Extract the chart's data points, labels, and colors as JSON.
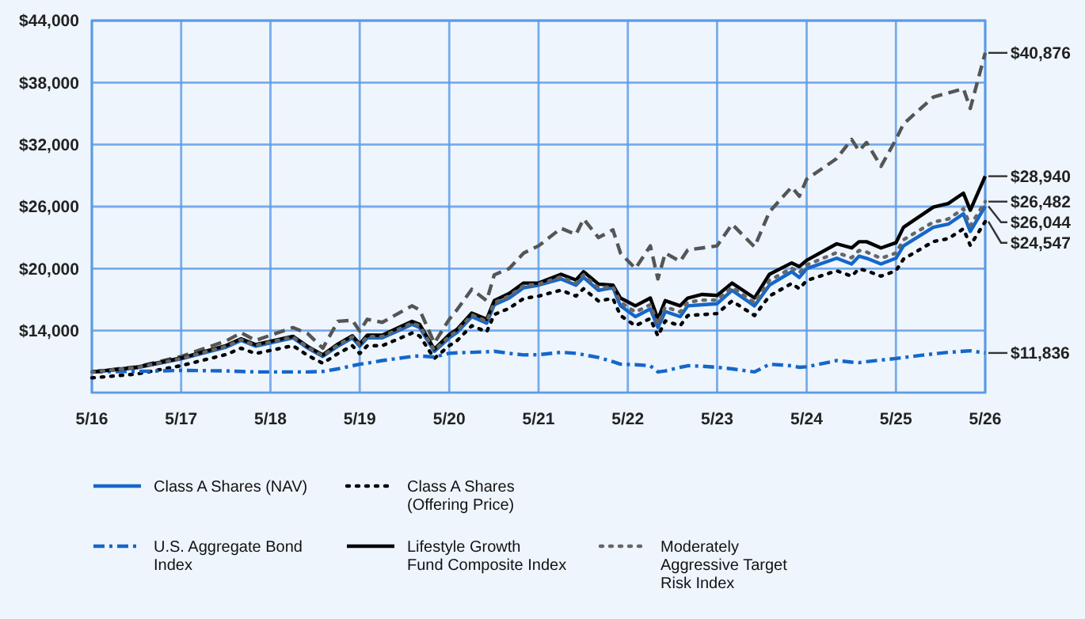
{
  "chart_data": {
    "type": "line",
    "grid": true,
    "legend": "bottom",
    "x": [
      "2016-05",
      "2016-11",
      "2017-05",
      "2017-11",
      "2018-01",
      "2018-03",
      "2018-08",
      "2018-10",
      "2018-12",
      "2019-02",
      "2019-04",
      "2019-05",
      "2019-06",
      "2019-08",
      "2019-12",
      "2020-01",
      "2020-03",
      "2020-05",
      "2020-06",
      "2020-08",
      "2020-10",
      "2020-11",
      "2021-01",
      "2021-03",
      "2021-05",
      "2021-08",
      "2021-10",
      "2021-11",
      "2022-01",
      "2022-03",
      "2022-04",
      "2022-06",
      "2022-08",
      "2022-09",
      "2022-10",
      "2022-12",
      "2023-01",
      "2023-03",
      "2023-05",
      "2023-07",
      "2023-10",
      "2023-12",
      "2024-03",
      "2024-04",
      "2024-05",
      "2024-09",
      "2024-11",
      "2024-12",
      "2025-01",
      "2025-03",
      "2025-05",
      "2025-06",
      "2025-10",
      "2025-12",
      "2026-02",
      "2026-03",
      "2026-05"
    ],
    "xlim": [
      "2016-05",
      "2026-05"
    ],
    "xticks": [
      {
        "value": "2016-05",
        "label": "5/16"
      },
      {
        "value": "2017-05",
        "label": "5/17"
      },
      {
        "value": "2018-05",
        "label": "5/18"
      },
      {
        "value": "2019-05",
        "label": "5/19"
      },
      {
        "value": "2020-05",
        "label": "5/20"
      },
      {
        "value": "2021-05",
        "label": "5/21"
      },
      {
        "value": "2022-05",
        "label": "5/22"
      },
      {
        "value": "2023-05",
        "label": "5/23"
      },
      {
        "value": "2024-05",
        "label": "5/24"
      },
      {
        "value": "2025-05",
        "label": "5/25"
      },
      {
        "value": "2026-05",
        "label": "5/26"
      }
    ],
    "ylim": [
      8000,
      44000
    ],
    "yticks": [
      {
        "value": 14000,
        "label": "$14,000"
      },
      {
        "value": 20000,
        "label": "$20,000"
      },
      {
        "value": 26000,
        "label": "$26,000"
      },
      {
        "value": 32000,
        "label": "$32,000"
      },
      {
        "value": 38000,
        "label": "$38,000"
      },
      {
        "value": 44000,
        "label": "$44,000"
      }
    ],
    "series": [
      {
        "name": "Class A Shares (NAV)",
        "color": "#1567c9",
        "line_style": "solid",
        "values": [
          10000,
          10400,
          11260,
          12400,
          13050,
          12500,
          13300,
          12300,
          11500,
          12500,
          13300,
          12500,
          13300,
          13300,
          14600,
          14300,
          12000,
          13300,
          13800,
          15350,
          14730,
          16500,
          17150,
          18150,
          18400,
          19000,
          18400,
          19150,
          17900,
          18150,
          16400,
          15350,
          16100,
          14300,
          15850,
          15350,
          16400,
          16500,
          16600,
          17900,
          16400,
          18400,
          19700,
          19150,
          20000,
          21000,
          20450,
          21200,
          21000,
          20450,
          21000,
          22200,
          24000,
          24300,
          25300,
          23600,
          26044
        ],
        "value_labels": [
          null,
          null,
          null,
          null,
          null,
          null,
          null,
          null,
          null,
          null,
          null,
          null,
          null,
          null,
          null,
          null,
          null,
          null,
          null,
          null,
          null,
          null,
          null,
          null,
          null,
          null,
          null,
          null,
          null,
          null,
          null,
          null,
          null,
          null,
          null,
          null,
          null,
          null,
          null,
          null,
          null,
          null,
          null,
          null,
          null,
          null,
          null,
          null,
          null,
          null,
          null,
          null,
          null,
          null,
          null,
          null,
          "$26,044"
        ]
      },
      {
        "name": "Class A Shares (Offering Price)",
        "color": "#000000",
        "line_style": "dotted",
        "values": [
          9425,
          9800,
          10610,
          11690,
          12300,
          11780,
          12540,
          11590,
          10840,
          11780,
          12540,
          11780,
          12540,
          12540,
          13760,
          13480,
          11310,
          12540,
          13010,
          14470,
          13880,
          15550,
          16160,
          17110,
          17340,
          17910,
          17340,
          18050,
          16870,
          17110,
          15460,
          14470,
          15170,
          13480,
          14940,
          14470,
          15460,
          15550,
          15650,
          16870,
          15460,
          17340,
          18570,
          18050,
          18850,
          19790,
          19270,
          19980,
          19790,
          19270,
          19790,
          20920,
          22620,
          22900,
          23850,
          22240,
          24547
        ],
        "value_labels": [
          null,
          null,
          null,
          null,
          null,
          null,
          null,
          null,
          null,
          null,
          null,
          null,
          null,
          null,
          null,
          null,
          null,
          null,
          null,
          null,
          null,
          null,
          null,
          null,
          null,
          null,
          null,
          null,
          null,
          null,
          null,
          null,
          null,
          null,
          null,
          null,
          null,
          null,
          null,
          null,
          null,
          null,
          null,
          null,
          null,
          null,
          null,
          null,
          null,
          null,
          null,
          null,
          null,
          null,
          null,
          null,
          "$24,547"
        ]
      },
      {
        "color": "#555555",
        "line_style": "dashed",
        "values": [
          10000,
          10500,
          11500,
          13000,
          13800,
          13050,
          14300,
          13700,
          12300,
          14900,
          15000,
          13950,
          15100,
          14800,
          16400,
          16000,
          12800,
          15100,
          16000,
          18000,
          16900,
          19400,
          20000,
          21500,
          22200,
          23900,
          23300,
          24800,
          23000,
          23750,
          21500,
          20000,
          22200,
          19000,
          21500,
          20700,
          21800,
          22000,
          22200,
          24300,
          22100,
          25500,
          27900,
          27000,
          28650,
          30650,
          32500,
          31400,
          32200,
          29900,
          32500,
          34000,
          36600,
          37000,
          37400,
          35500,
          40876
        ],
        "value_labels": [
          null,
          null,
          null,
          null,
          null,
          null,
          null,
          null,
          null,
          null,
          null,
          null,
          null,
          null,
          null,
          null,
          null,
          null,
          null,
          null,
          null,
          null,
          null,
          null,
          null,
          null,
          null,
          null,
          null,
          null,
          null,
          null,
          null,
          null,
          null,
          null,
          null,
          null,
          null,
          null,
          null,
          null,
          null,
          null,
          null,
          null,
          null,
          null,
          null,
          null,
          null,
          null,
          null,
          null,
          null,
          null,
          "$40,876"
        ]
      },
      {
        "name": "U.S. Aggregate Bond Index",
        "color": "#1567c9",
        "line_style": "dashdot",
        "values": [
          10000,
          10050,
          10150,
          10100,
          10050,
          10000,
          10000,
          10000,
          10050,
          10300,
          10600,
          10750,
          10850,
          11100,
          11500,
          11550,
          11450,
          11800,
          11850,
          11900,
          11950,
          12000,
          11800,
          11650,
          11670,
          11900,
          11800,
          11670,
          11400,
          11000,
          10750,
          10700,
          10600,
          10000,
          10100,
          10450,
          10600,
          10550,
          10450,
          10300,
          10000,
          10750,
          10600,
          10450,
          10500,
          11100,
          10950,
          10900,
          11000,
          11150,
          11300,
          11400,
          11750,
          11900,
          12000,
          12050,
          11836
        ],
        "value_labels": [
          null,
          null,
          null,
          null,
          null,
          null,
          null,
          null,
          null,
          null,
          null,
          null,
          null,
          null,
          null,
          null,
          null,
          null,
          null,
          null,
          null,
          null,
          null,
          null,
          null,
          null,
          null,
          null,
          null,
          null,
          null,
          null,
          null,
          null,
          null,
          null,
          null,
          null,
          null,
          null,
          null,
          null,
          null,
          null,
          null,
          null,
          null,
          null,
          null,
          null,
          null,
          null,
          null,
          null,
          null,
          null,
          "$11,836"
        ]
      },
      {
        "name": "Lifestyle Growth Fund Composite Index",
        "color": "#000000",
        "line_style": "solid",
        "values": [
          10000,
          10450,
          11350,
          12550,
          13200,
          12650,
          13450,
          12450,
          11650,
          12700,
          13500,
          12700,
          13550,
          13550,
          14900,
          14600,
          12200,
          13600,
          14100,
          15700,
          15100,
          16900,
          17600,
          18600,
          18600,
          19450,
          18900,
          19700,
          18500,
          18400,
          17150,
          16400,
          17150,
          15100,
          16900,
          16400,
          17150,
          17500,
          17400,
          18600,
          17150,
          19450,
          20550,
          20200,
          20800,
          22400,
          22000,
          22600,
          22600,
          22000,
          22500,
          24000,
          25950,
          26300,
          27300,
          25650,
          28940
        ],
        "value_labels": [
          null,
          null,
          null,
          null,
          null,
          null,
          null,
          null,
          null,
          null,
          null,
          null,
          null,
          null,
          null,
          null,
          null,
          null,
          null,
          null,
          null,
          null,
          null,
          null,
          null,
          null,
          null,
          null,
          null,
          null,
          null,
          null,
          null,
          null,
          null,
          null,
          null,
          null,
          null,
          null,
          null,
          null,
          null,
          null,
          null,
          null,
          null,
          null,
          null,
          null,
          null,
          null,
          null,
          null,
          null,
          null,
          "$28,940"
        ]
      },
      {
        "name": "Moderately Aggressive Target Risk Index",
        "color": "#666666",
        "line_style": "dotted",
        "values": [
          10000,
          10420,
          11300,
          12480,
          13120,
          12570,
          13380,
          12380,
          11570,
          12600,
          13400,
          12600,
          13420,
          13420,
          14750,
          14450,
          12100,
          13450,
          13950,
          15520,
          14900,
          16700,
          17350,
          18350,
          18500,
          19200,
          18600,
          19400,
          18150,
          18250,
          16750,
          15800,
          16500,
          14650,
          16300,
          15800,
          16750,
          16950,
          16950,
          18200,
          16700,
          18850,
          20050,
          19600,
          20350,
          21550,
          21050,
          21750,
          21600,
          21000,
          21500,
          22800,
          24500,
          24800,
          25800,
          24150,
          26482
        ],
        "value_labels": [
          null,
          null,
          null,
          null,
          null,
          null,
          null,
          null,
          null,
          null,
          null,
          null,
          null,
          null,
          null,
          null,
          null,
          null,
          null,
          null,
          null,
          null,
          null,
          null,
          null,
          null,
          null,
          null,
          null,
          null,
          null,
          null,
          null,
          null,
          null,
          null,
          null,
          null,
          null,
          null,
          null,
          null,
          null,
          null,
          null,
          null,
          null,
          null,
          null,
          null,
          null,
          null,
          null,
          null,
          null,
          null,
          "$26,482"
        ]
      }
    ]
  }
}
